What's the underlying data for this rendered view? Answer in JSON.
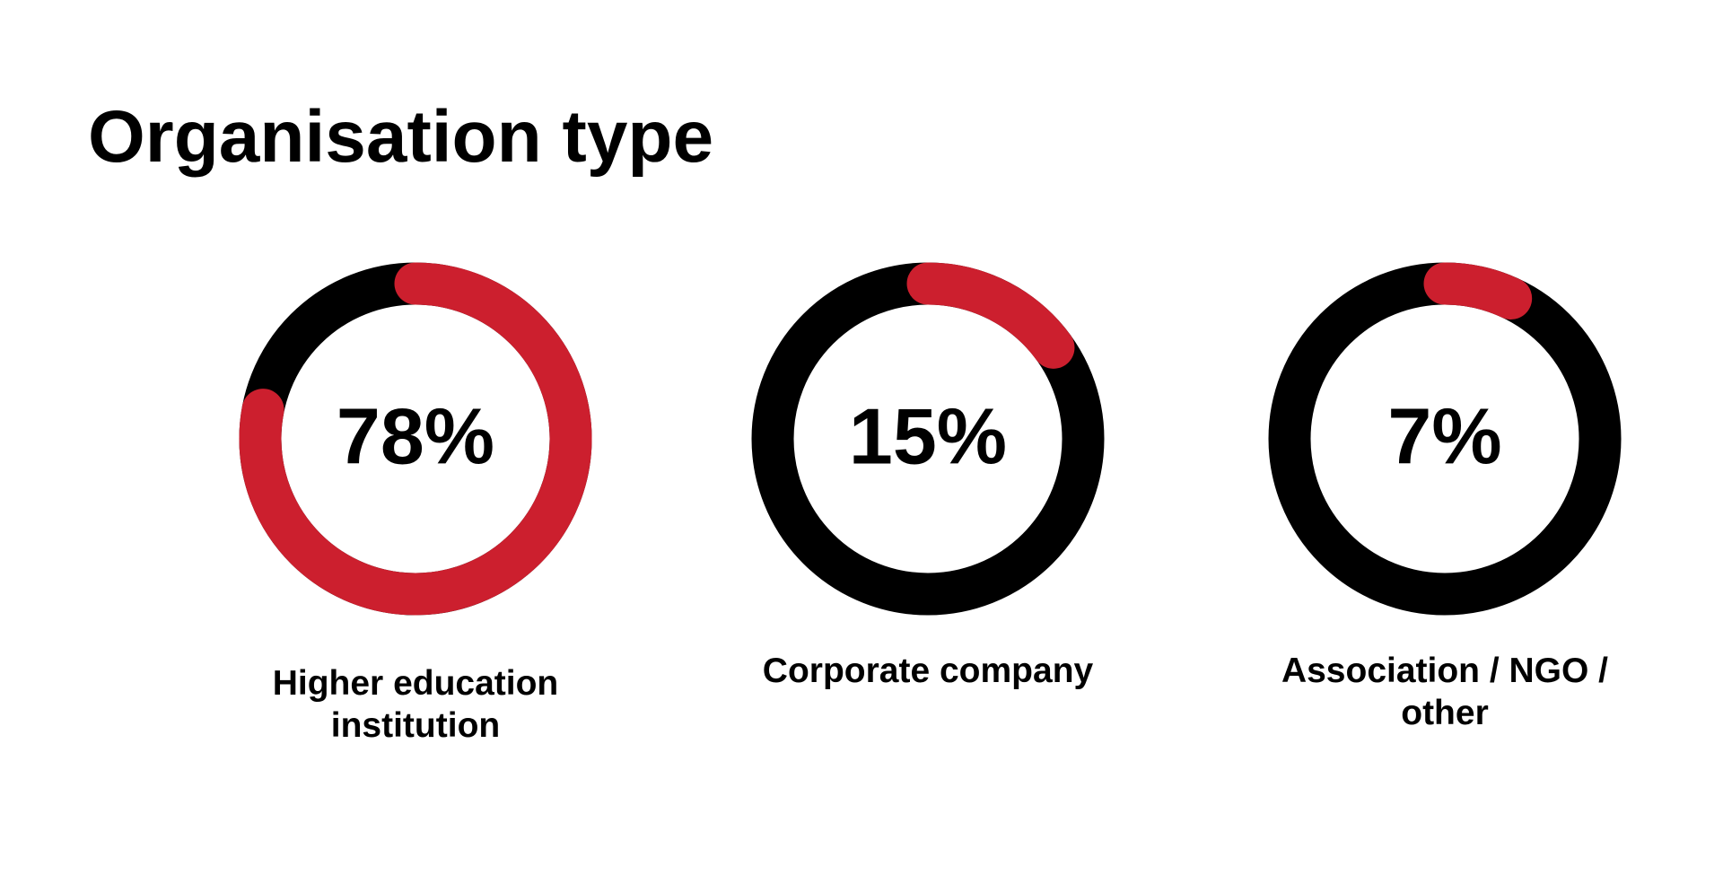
{
  "chart_data": {
    "type": "gauge",
    "title": "Organisation type",
    "categories": [
      "Higher education institution",
      "Corporate company",
      "Association / NGO / other"
    ],
    "values": [
      78,
      15,
      7
    ],
    "value_labels": [
      "78%",
      "15%",
      "7%"
    ],
    "color": "#cc1f2e",
    "track_color": "#000000",
    "ylim": [
      0,
      100
    ]
  }
}
